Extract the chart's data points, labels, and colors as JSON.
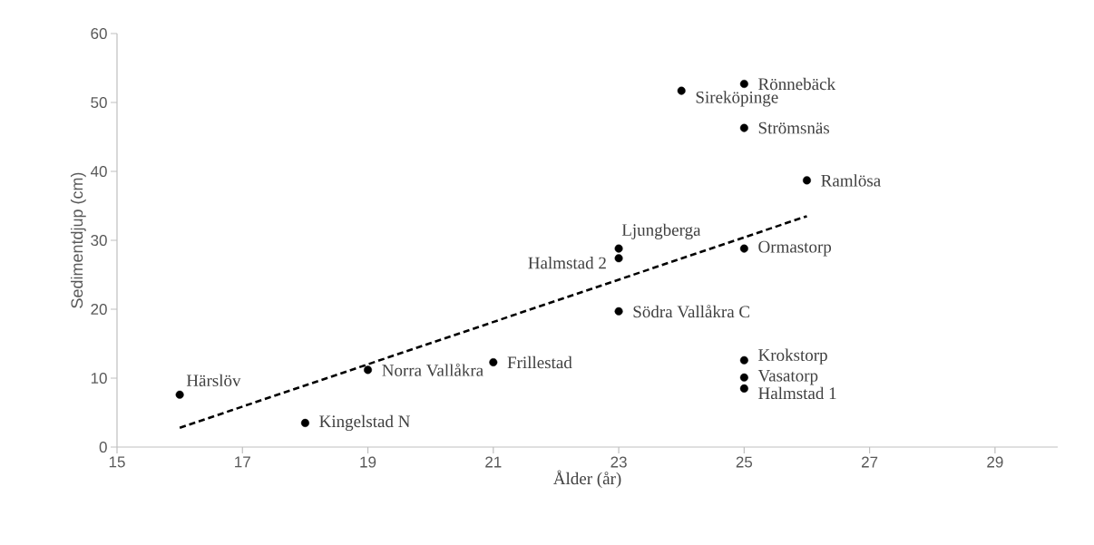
{
  "chart_data": {
    "type": "scatter",
    "xlabel": "Ålder (år)",
    "ylabel": "Sedimentdjup (cm)",
    "xlim": [
      15,
      30
    ],
    "xticks": [
      15,
      17,
      19,
      21,
      23,
      25,
      27,
      29
    ],
    "ylim": [
      0,
      60
    ],
    "yticks": [
      0,
      10,
      20,
      30,
      40,
      50,
      60
    ],
    "series": [
      {
        "color": "#000000",
        "marker": "circle",
        "x": [
          16,
          18,
          19,
          21,
          23,
          23,
          23,
          24,
          25,
          25,
          25,
          25,
          25,
          25,
          26
        ],
        "values": [
          7.6,
          3.5,
          11.2,
          12.3,
          28.8,
          27.4,
          19.7,
          51.7,
          52.7,
          46.3,
          28.8,
          12.6,
          10.1,
          8.5,
          38.7
        ]
      },
      {
        "type": "line",
        "color": "#000000",
        "line_style": "dashed",
        "marker": "none",
        "x": [
          16,
          26
        ],
        "values": [
          2.8,
          33.5
        ]
      }
    ],
    "annotations": [
      {
        "text": "Härslöv",
        "x": 16,
        "y": 7.6
      },
      {
        "text": "Kingelstad N",
        "x": 18,
        "y": 3.5
      },
      {
        "text": "Norra Vallåkra",
        "x": 19,
        "y": 11.2
      },
      {
        "text": "Frillestad",
        "x": 21,
        "y": 12.3
      },
      {
        "text": "Ljungberga",
        "x": 23,
        "y": 28.8
      },
      {
        "text": "Halmstad 2",
        "x": 23,
        "y": 27.4
      },
      {
        "text": "Södra Vallåkra C",
        "x": 23,
        "y": 19.7
      },
      {
        "text": "Sireköpinge",
        "x": 24,
        "y": 51.7
      },
      {
        "text": "Rönnebäck",
        "x": 25,
        "y": 52.7
      },
      {
        "text": "Strömsnäs",
        "x": 25,
        "y": 46.3
      },
      {
        "text": "Ormastorp",
        "x": 25,
        "y": 28.8
      },
      {
        "text": "Krokstorp",
        "x": 25,
        "y": 12.6
      },
      {
        "text": "Vasatorp",
        "x": 25,
        "y": 10.1
      },
      {
        "text": "Halmstad 1",
        "x": 25,
        "y": 8.5
      },
      {
        "text": "Ramlösa",
        "x": 26,
        "y": 38.7
      }
    ]
  }
}
